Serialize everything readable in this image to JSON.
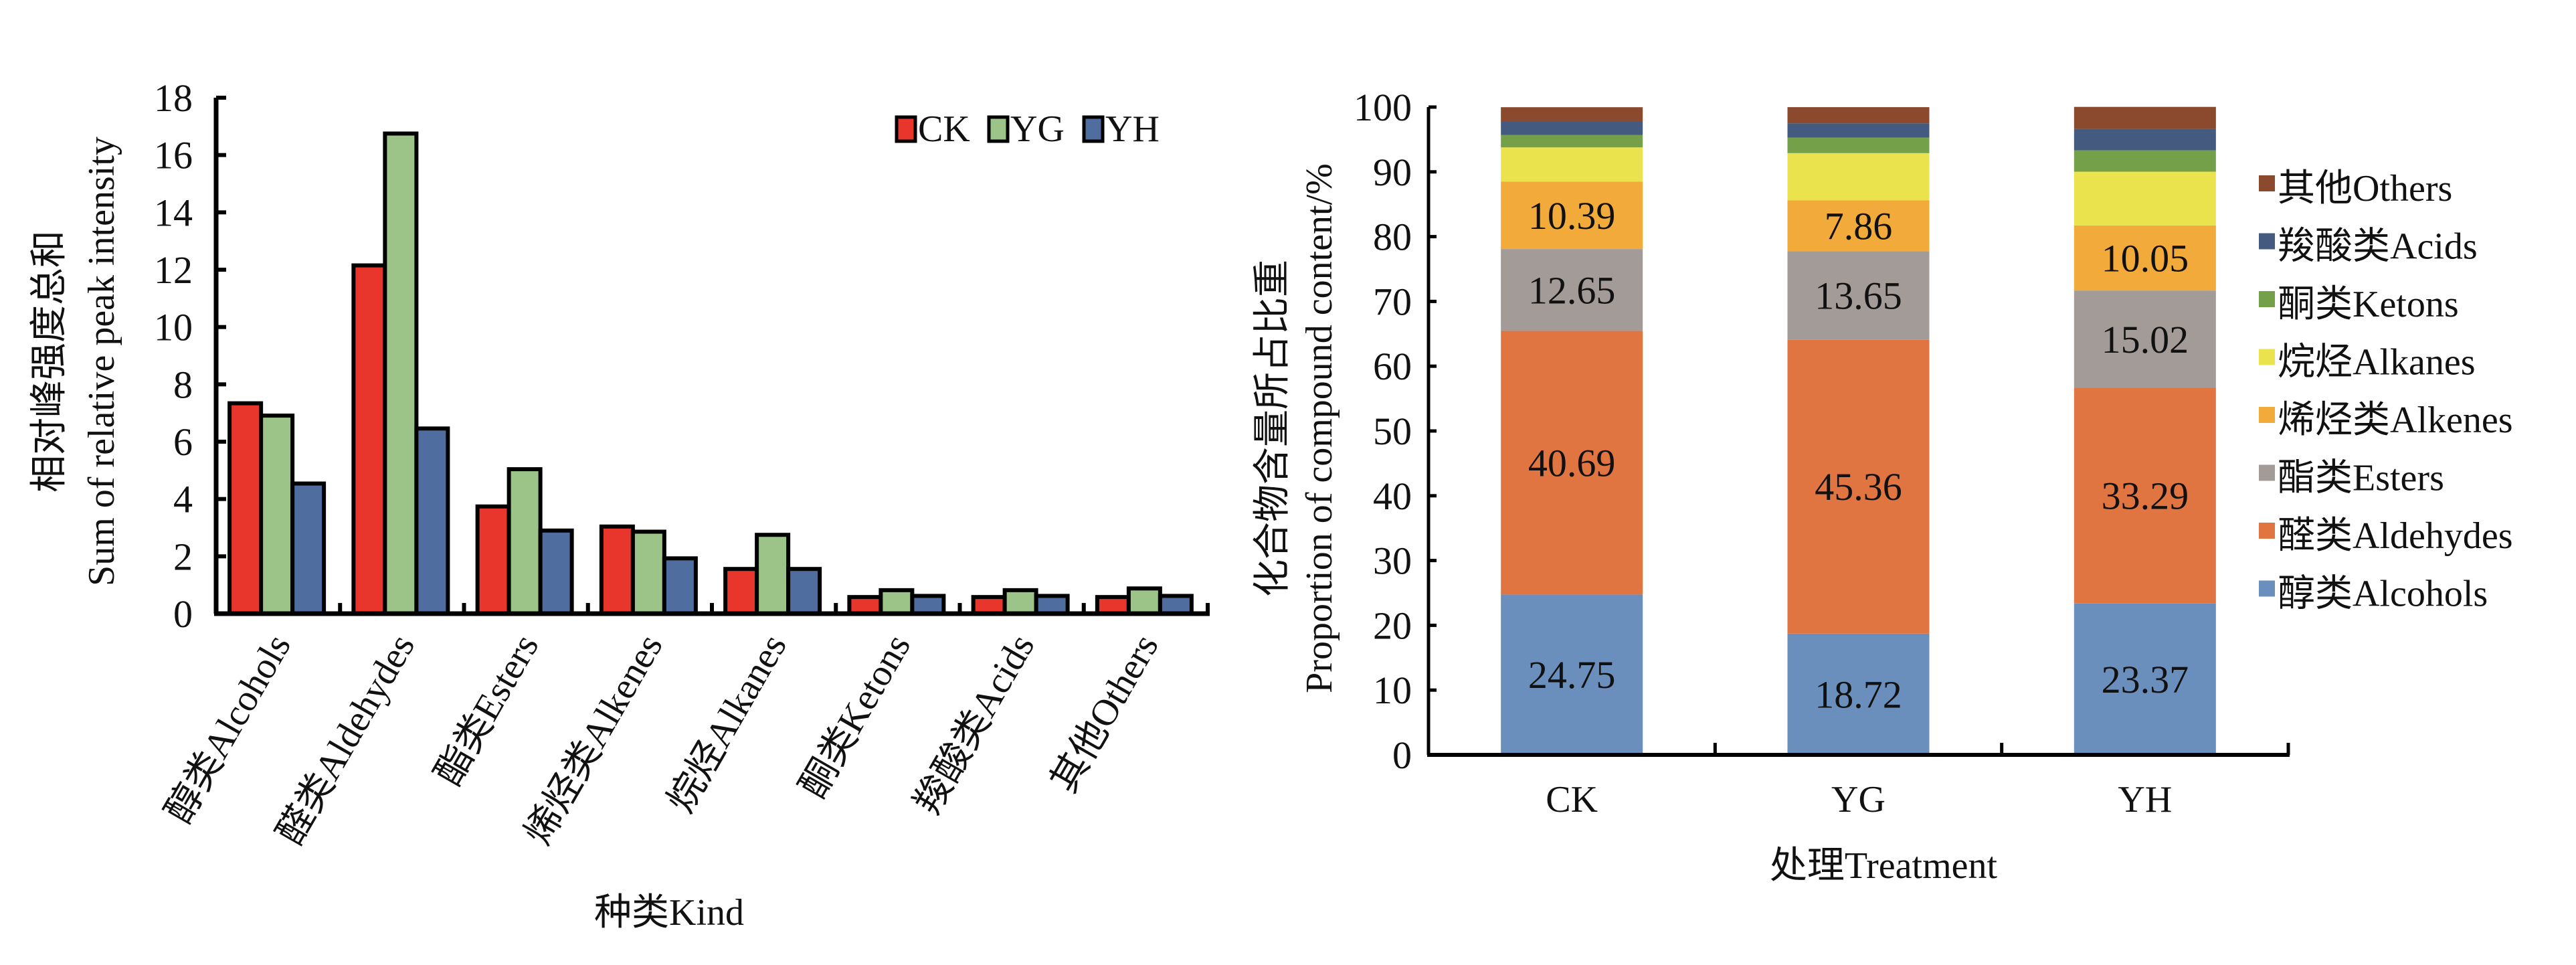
{
  "chart_data": [
    {
      "type": "bar",
      "title": "",
      "ylabel_cn": "相对峰强度总和",
      "ylabel_en": "Sum of relative peak intensity",
      "xlabel": "种类Kind",
      "ylim": [
        0,
        18
      ],
      "yticks": [
        0,
        2,
        4,
        6,
        8,
        10,
        12,
        14,
        16,
        18
      ],
      "grid": false,
      "legend_position": "top-right",
      "categories": [
        "醇类Alcohols",
        "醛类Aldehydes",
        "酯类Esters",
        "烯烃类Alkenes",
        "烷烃Alkanes",
        "酮类Ketons",
        "羧酸类Acids",
        "其他Others"
      ],
      "series": [
        {
          "name": "CK",
          "color": "#e8362d",
          "values": [
            7.34,
            12.15,
            3.74,
            3.04,
            1.56,
            0.58,
            0.58,
            0.58
          ]
        },
        {
          "name": "YG",
          "color": "#9dc488",
          "values": [
            6.91,
            16.75,
            5.04,
            2.86,
            2.75,
            0.82,
            0.82,
            0.88
          ]
        },
        {
          "name": "YH",
          "color": "#4f6d9e",
          "values": [
            4.54,
            6.46,
            2.9,
            1.93,
            1.56,
            0.62,
            0.62,
            0.62
          ]
        }
      ]
    },
    {
      "type": "bar",
      "stacked": true,
      "title": "",
      "ylabel_cn": "化合物含量所占比重",
      "ylabel_en": "Proportion of compound content/%",
      "xlabel": "处理Treatment",
      "ylim": [
        0,
        100
      ],
      "yticks": [
        0,
        10,
        20,
        30,
        40,
        50,
        60,
        70,
        80,
        90,
        100
      ],
      "grid": false,
      "legend_position": "right",
      "categories": [
        "CK",
        "YG",
        "YH"
      ],
      "series": [
        {
          "name": "醇类Alcohols",
          "color": "#6b8fbc",
          "values": [
            24.75,
            18.72,
            23.37
          ],
          "labels": [
            "24.75",
            "18.72",
            "23.37"
          ]
        },
        {
          "name": "醛类Aldehydes",
          "color": "#e07541",
          "values": [
            40.69,
            45.36,
            33.29
          ],
          "labels": [
            "40.69",
            "45.36",
            "33.29"
          ]
        },
        {
          "name": "酯类Esters",
          "color": "#a39b98",
          "values": [
            12.65,
            13.65,
            15.02
          ],
          "labels": [
            "12.65",
            "13.65",
            "15.02"
          ]
        },
        {
          "name": "烯烃类Alkenes",
          "color": "#f2aa3a",
          "values": [
            10.39,
            7.86,
            10.05
          ],
          "labels": [
            "10.39",
            "7.86",
            "10.05"
          ]
        },
        {
          "name": "烷烃Alkanes",
          "color": "#ebe34d",
          "values": [
            5.3,
            7.3,
            8.3
          ],
          "labels": [
            "",
            "",
            ""
          ]
        },
        {
          "name": "酮类Ketons",
          "color": "#74a04a",
          "values": [
            1.9,
            2.4,
            3.3
          ],
          "labels": [
            "",
            "",
            ""
          ]
        },
        {
          "name": "羧酸类Acids",
          "color": "#445a7f",
          "values": [
            2.1,
            2.2,
            3.3
          ],
          "labels": [
            "",
            "",
            ""
          ]
        },
        {
          "name": "其他Others",
          "color": "#8b4a2e",
          "values": [
            2.2,
            2.5,
            3.4
          ],
          "labels": [
            "",
            "",
            ""
          ]
        }
      ],
      "legend_order": [
        "其他Others",
        "羧酸类Acids",
        "酮类Ketons",
        "烷烃Alkanes",
        "烯烃类Alkenes",
        "酯类Esters",
        "醛类Aldehydes",
        "醇类Alcohols"
      ]
    }
  ]
}
